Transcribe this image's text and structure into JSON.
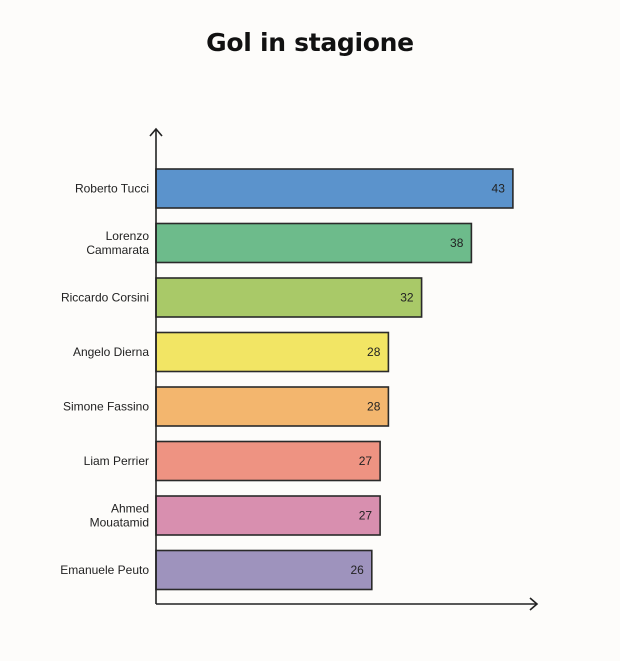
{
  "chart_data": {
    "type": "bar",
    "orientation": "horizontal",
    "title": "Gol in stagione",
    "xlabel": "",
    "ylabel": "",
    "grid": false,
    "legend": "none",
    "xlim": [
      0,
      52
    ],
    "categories": [
      "Roberto Tucci",
      "Lorenzo Cammarata",
      "Riccardo Corsini",
      "Angelo Dierna",
      "Simone Fassino",
      "Liam Perrier",
      "Ahmed Mouatamid",
      "Emanuele Peuto"
    ],
    "category_lines": [
      [
        "Roberto Tucci"
      ],
      [
        "Lorenzo",
        "Cammarata"
      ],
      [
        "Riccardo Corsini"
      ],
      [
        "Angelo Dierna"
      ],
      [
        "Simone Fassino"
      ],
      [
        "Liam Perrier"
      ],
      [
        "Ahmed",
        "Mouatamid"
      ],
      [
        "Emanuele Peuto"
      ]
    ],
    "values": [
      43,
      38,
      32,
      28,
      28,
      27,
      27,
      26
    ],
    "colors": [
      "#5b93cc",
      "#6dbb8b",
      "#a9c968",
      "#f2e564",
      "#f3b66e",
      "#ee9382",
      "#d88faf",
      "#9e93bd"
    ]
  }
}
